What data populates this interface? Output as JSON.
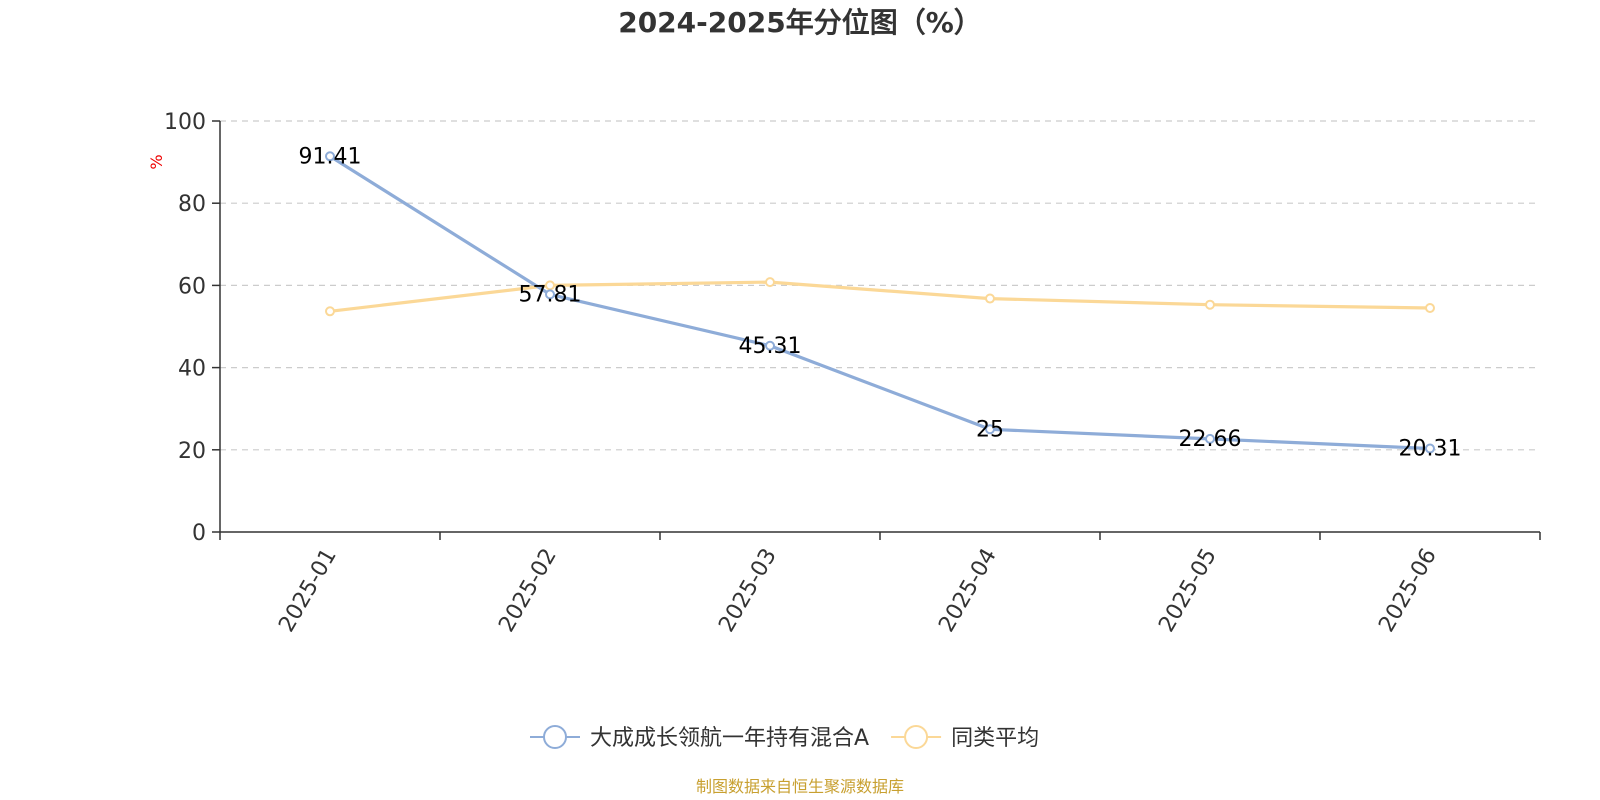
{
  "chart_data": {
    "type": "line",
    "title": "2024-2025年分位图（%）",
    "ylabel": "%",
    "xlabel": "",
    "ylim": [
      0,
      100
    ],
    "yticks": [
      0,
      20,
      40,
      60,
      80,
      100
    ],
    "grid": true,
    "legend_position": "bottom",
    "categories": [
      "2025-01",
      "2025-02",
      "2025-03",
      "2025-04",
      "2025-05",
      "2025-06"
    ],
    "series": [
      {
        "name": "大成成长领航一年持有混合A",
        "color": "#8eacd8",
        "values": [
          91.41,
          57.81,
          45.31,
          25,
          22.66,
          20.31
        ],
        "labels": [
          "91.41",
          "57.81",
          "45.31",
          "25",
          "22.66",
          "20.31"
        ]
      },
      {
        "name": "同类平均",
        "color": "#fbd897",
        "values": [
          53.7,
          60.0,
          60.8,
          56.8,
          55.3,
          54.5
        ]
      }
    ],
    "source": "制图数据来自恒生聚源数据库"
  }
}
